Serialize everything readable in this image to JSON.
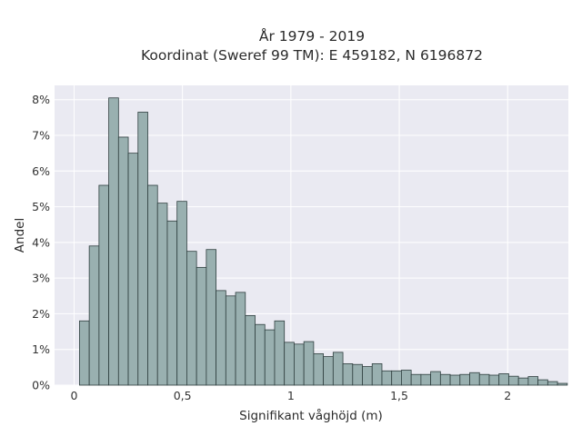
{
  "chart_data": {
    "type": "bar",
    "title_line1": "År 1979 - 2019",
    "title_line2": "Koordinat (Sweref 99 TM): E 459182, N 6196872",
    "xlabel": "Signifikant våghöjd (m)",
    "ylabel": "Andel",
    "xlim": [
      -0.09,
      2.28
    ],
    "ylim": [
      0,
      8.4
    ],
    "x_ticks": [
      0,
      0.5,
      1,
      1.5,
      2
    ],
    "x_tick_labels": [
      "0",
      "0,5",
      "1",
      "1,5",
      "2"
    ],
    "y_ticks": [
      0,
      1,
      2,
      3,
      4,
      5,
      6,
      7,
      8
    ],
    "y_tick_labels": [
      "0%",
      "1%",
      "2%",
      "3%",
      "4%",
      "5%",
      "6%",
      "7%",
      "8%"
    ],
    "bin_start": 0.025,
    "bin_width": 0.045,
    "values": [
      1.8,
      3.9,
      5.6,
      8.05,
      6.95,
      6.5,
      7.65,
      5.6,
      5.1,
      4.6,
      5.15,
      3.75,
      3.3,
      3.8,
      2.65,
      2.5,
      2.6,
      1.95,
      1.7,
      1.55,
      1.8,
      1.2,
      1.15,
      1.22,
      0.88,
      0.8,
      0.92,
      0.6,
      0.58,
      0.52,
      0.6,
      0.4,
      0.4,
      0.42,
      0.3,
      0.3,
      0.38,
      0.3,
      0.28,
      0.3,
      0.35,
      0.3,
      0.28,
      0.32,
      0.25,
      0.2,
      0.24,
      0.15,
      0.1,
      0.05
    ],
    "colors": {
      "bar_fill": "#99b0b0",
      "bar_edge": "#2f3f3f",
      "plot_background": "#eaeaf2",
      "grid": "#ffffff"
    },
    "grid": true
  }
}
